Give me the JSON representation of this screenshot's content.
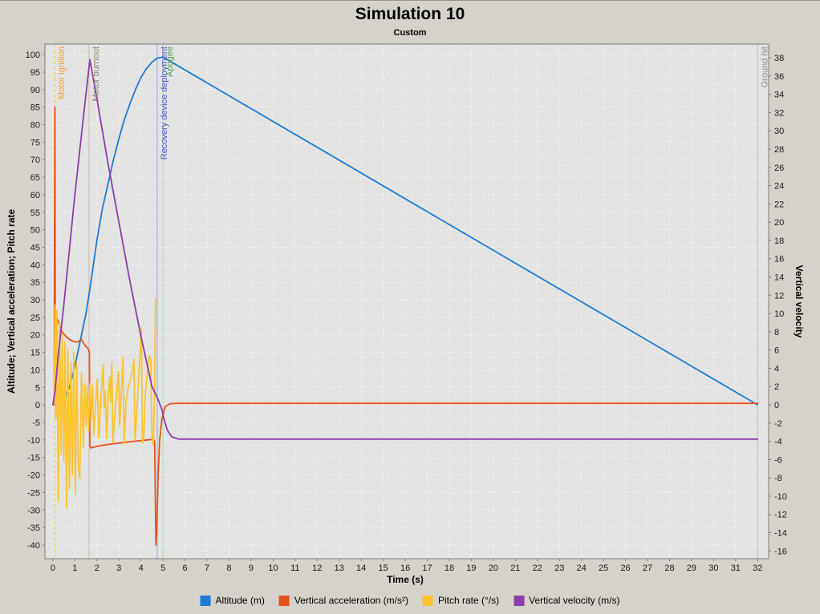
{
  "header": {
    "title": "Simulation 10",
    "subtitle": "Custom"
  },
  "chart_data": {
    "type": "line",
    "title": "Simulation 10",
    "subtitle": "Custom",
    "xlabel": "Time (s)",
    "ylabel_left": "Altitude; Vertical acceleration; Pitch rate",
    "ylabel_right": "Vertical velocity",
    "xlim": [
      -0.36,
      32.5
    ],
    "x_ticks": {
      "min": 0,
      "max": 32,
      "step": 1
    },
    "ylim_left": [
      -43.9,
      103.0
    ],
    "left_ticks": {
      "min": -40,
      "max": 100,
      "step": 5
    },
    "ylim_right": [
      -16.85,
      39.5
    ],
    "right_ticks": {
      "min": -16,
      "max": 38,
      "step": 2
    },
    "grid": true,
    "legend_position": "bottom",
    "colors": {
      "outer_bg": "#d5d2cb",
      "plot_bg": "#e3e3e3",
      "grid": "#f3f3f3",
      "plot_border": "#7c7c7c",
      "tick_text": "#1a1a1a"
    },
    "events": [
      {
        "label": "Motor ignition",
        "t": 0.07,
        "line_color": "#f7c066",
        "label_color": "#f5a02c",
        "style": "dashed"
      },
      {
        "label": "Motor burnout",
        "t": 1.64,
        "line_color": "#cdc3b1",
        "label_color": "#8b8171",
        "style": "solid"
      },
      {
        "label": "Recovery device deployment",
        "t": 4.74,
        "line_color": "#a9aede",
        "label_color": "#4b55c4",
        "style": "solid"
      },
      {
        "label": "Apogee",
        "t": 5.0,
        "line_color": "#bbdcb0",
        "label_color": "#58a34e",
        "style": "solid"
      },
      {
        "label": "Ground hit",
        "t": 32.0,
        "line_color": "#c6c6c0",
        "label_color": "#8f8f8f",
        "style": "solid"
      }
    ],
    "series": [
      {
        "name": "Altitude (m)",
        "color": "#1e7ad2",
        "axis": "left",
        "points": [
          [
            0,
            0
          ],
          [
            0.25,
            0.3
          ],
          [
            0.5,
            1.5
          ],
          [
            0.75,
            5
          ],
          [
            1.0,
            11
          ],
          [
            1.25,
            18.5
          ],
          [
            1.5,
            26
          ],
          [
            1.68,
            33
          ],
          [
            2.0,
            47
          ],
          [
            2.25,
            56
          ],
          [
            2.5,
            63
          ],
          [
            2.75,
            70
          ],
          [
            3.0,
            76
          ],
          [
            3.25,
            81.5
          ],
          [
            3.5,
            86
          ],
          [
            3.75,
            90
          ],
          [
            4.0,
            93.5
          ],
          [
            4.25,
            96
          ],
          [
            4.5,
            97.8
          ],
          [
            4.74,
            99
          ],
          [
            5.0,
            99.3
          ],
          [
            32,
            0
          ]
        ]
      },
      {
        "name": "Vertical acceleration (m/s²)",
        "color": "#e5521c",
        "axis": "left",
        "points": [
          [
            0,
            0
          ],
          [
            0.06,
            0.2
          ],
          [
            0.08,
            62
          ],
          [
            0.095,
            85
          ],
          [
            0.11,
            18
          ],
          [
            0.14,
            26
          ],
          [
            0.2,
            24.5
          ],
          [
            0.4,
            21
          ],
          [
            0.6,
            19.5
          ],
          [
            0.8,
            18.5
          ],
          [
            1.0,
            18
          ],
          [
            1.15,
            18
          ],
          [
            1.3,
            18.7
          ],
          [
            1.45,
            17
          ],
          [
            1.6,
            16
          ],
          [
            1.66,
            15
          ],
          [
            1.68,
            -11.5
          ],
          [
            1.72,
            -12.3
          ],
          [
            2.0,
            -11.8
          ],
          [
            2.5,
            -11.3
          ],
          [
            3.0,
            -10.9
          ],
          [
            3.5,
            -10.5
          ],
          [
            4.0,
            -10.2
          ],
          [
            4.3,
            -10
          ],
          [
            4.55,
            -9.8
          ],
          [
            4.62,
            -10.2
          ],
          [
            4.68,
            -40
          ],
          [
            4.72,
            -36
          ],
          [
            4.78,
            -20
          ],
          [
            4.85,
            -10
          ],
          [
            4.95,
            -4
          ],
          [
            5.1,
            -0.5
          ],
          [
            5.3,
            0.3
          ],
          [
            5.6,
            0.45
          ],
          [
            32,
            0.45
          ]
        ]
      },
      {
        "name": "Pitch rate (°/s)",
        "color": "#fcc32d",
        "axis": "left",
        "points": [
          [
            0,
            0
          ],
          [
            0.05,
            0.3
          ],
          [
            0.1,
            28.5
          ],
          [
            0.14,
            -4
          ],
          [
            0.18,
            27
          ],
          [
            0.25,
            -27.5
          ],
          [
            0.3,
            24
          ],
          [
            0.38,
            -14
          ],
          [
            0.42,
            20
          ],
          [
            0.5,
            -16
          ],
          [
            0.55,
            18
          ],
          [
            0.62,
            -29.5
          ],
          [
            0.68,
            16
          ],
          [
            0.75,
            -24
          ],
          [
            0.82,
            12
          ],
          [
            0.88,
            -20
          ],
          [
            0.95,
            15
          ],
          [
            1.02,
            -25.5
          ],
          [
            1.08,
            12
          ],
          [
            1.15,
            -17
          ],
          [
            1.22,
            -21
          ],
          [
            1.3,
            9
          ],
          [
            1.38,
            -12
          ],
          [
            1.45,
            6
          ],
          [
            1.5,
            -6
          ],
          [
            1.56,
            5.5
          ],
          [
            1.62,
            -7.5
          ],
          [
            1.68,
            6
          ],
          [
            1.74,
            -4
          ],
          [
            1.8,
            5.5
          ],
          [
            1.86,
            -8.5
          ],
          [
            1.95,
            1
          ],
          [
            2.02,
            7.5
          ],
          [
            2.08,
            -9.5
          ],
          [
            2.18,
            1.5
          ],
          [
            2.28,
            11.5
          ],
          [
            2.33,
            -1
          ],
          [
            2.38,
            4
          ],
          [
            2.44,
            -9.5
          ],
          [
            2.52,
            3
          ],
          [
            2.58,
            8
          ],
          [
            2.62,
            1
          ],
          [
            2.68,
            12
          ],
          [
            2.73,
            -10.5
          ],
          [
            2.82,
            -2
          ],
          [
            2.9,
            4
          ],
          [
            2.98,
            9.5
          ],
          [
            3.03,
            -6
          ],
          [
            3.1,
            2.5
          ],
          [
            3.18,
            13.5
          ],
          [
            3.24,
            -11
          ],
          [
            3.32,
            1
          ],
          [
            3.42,
            5
          ],
          [
            3.52,
            7
          ],
          [
            3.62,
            10
          ],
          [
            3.68,
            13
          ],
          [
            3.73,
            -10
          ],
          [
            3.8,
            -3
          ],
          [
            3.9,
            8
          ],
          [
            3.97,
            16
          ],
          [
            4.02,
            22
          ],
          [
            4.06,
            -11
          ],
          [
            4.12,
            -9.5
          ],
          [
            4.2,
            3
          ],
          [
            4.3,
            10
          ],
          [
            4.38,
            14
          ],
          [
            4.44,
            13
          ],
          [
            4.5,
            -9.5
          ],
          [
            4.56,
            -11.5
          ],
          [
            4.62,
            5
          ],
          [
            4.66,
            30.5
          ]
        ]
      },
      {
        "name": "Vertical velocity (m/s)",
        "color": "#8c3da8",
        "axis": "right",
        "points": [
          [
            0,
            0
          ],
          [
            0.1,
            1.5
          ],
          [
            0.25,
            5.5
          ],
          [
            0.5,
            11
          ],
          [
            0.75,
            17
          ],
          [
            1.0,
            23
          ],
          [
            1.25,
            28.5
          ],
          [
            1.5,
            34
          ],
          [
            1.68,
            37.8
          ],
          [
            2.0,
            33.5
          ],
          [
            2.5,
            26.5
          ],
          [
            3.0,
            20
          ],
          [
            3.5,
            13.5
          ],
          [
            4.0,
            7.5
          ],
          [
            4.5,
            2
          ],
          [
            4.74,
            0.8
          ],
          [
            4.95,
            -0.5
          ],
          [
            5.05,
            -1.6
          ],
          [
            5.2,
            -2.8
          ],
          [
            5.4,
            -3.5
          ],
          [
            5.7,
            -3.75
          ],
          [
            32,
            -3.75
          ]
        ]
      }
    ]
  }
}
